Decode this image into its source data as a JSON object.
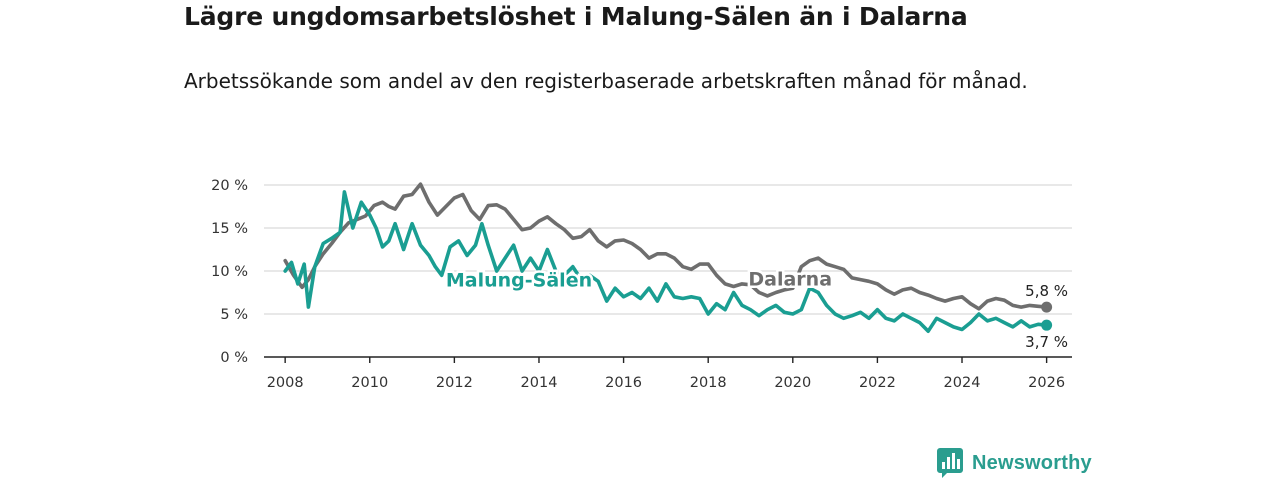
{
  "header": {
    "title": "Lägre ungdomsarbetslöshet i Malung-Sälen än i Dalarna",
    "subtitle": "Arbetssökande som andel av den registerbaserade arbetskraften månad för månad."
  },
  "brand": {
    "name": "Newsworthy"
  },
  "colors": {
    "malung": "#1a9e92",
    "dalarna": "#6e6e6e",
    "grid": "#d9d9d9",
    "axis": "#222222",
    "brand": "#2a9d8f"
  },
  "chart_data": {
    "type": "line",
    "title": "Lägre ungdomsarbetslöshet i Malung-Sälen än i Dalarna",
    "xlabel": "",
    "ylabel": "",
    "xlim": [
      2007.5,
      2026.6
    ],
    "ylim": [
      0,
      20
    ],
    "y_ticks": [
      0,
      5,
      10,
      15,
      20
    ],
    "y_tick_labels": [
      "0 %",
      "5 %",
      "10 %",
      "15 %",
      "20 %"
    ],
    "x_ticks": [
      2008,
      2010,
      2012,
      2014,
      2016,
      2018,
      2020,
      2022,
      2024,
      2026
    ],
    "x_tick_labels": [
      "2008",
      "2010",
      "2012",
      "2014",
      "2016",
      "2018",
      "2020",
      "2022",
      "2024",
      "2026"
    ],
    "grid": true,
    "series": [
      {
        "name": "Dalarna",
        "label": "Dalarna",
        "end_label": "5,8 %",
        "end_value": 5.8,
        "x": [
          2008.0,
          2008.2,
          2008.4,
          2008.55,
          2008.7,
          2008.9,
          2009.1,
          2009.3,
          2009.5,
          2009.7,
          2009.9,
          2010.1,
          2010.3,
          2010.45,
          2010.6,
          2010.8,
          2011.0,
          2011.2,
          2011.4,
          2011.6,
          2011.8,
          2012.0,
          2012.2,
          2012.4,
          2012.6,
          2012.8,
          2013.0,
          2013.2,
          2013.4,
          2013.6,
          2013.8,
          2014.0,
          2014.2,
          2014.4,
          2014.6,
          2014.8,
          2015.0,
          2015.2,
          2015.4,
          2015.6,
          2015.8,
          2016.0,
          2016.2,
          2016.4,
          2016.6,
          2016.8,
          2017.0,
          2017.2,
          2017.4,
          2017.6,
          2017.8,
          2018.0,
          2018.2,
          2018.4,
          2018.6,
          2018.8,
          2019.0,
          2019.2,
          2019.4,
          2019.6,
          2019.8,
          2020.0,
          2020.2,
          2020.4,
          2020.6,
          2020.8,
          2021.0,
          2021.2,
          2021.4,
          2021.6,
          2021.8,
          2022.0,
          2022.2,
          2022.4,
          2022.6,
          2022.8,
          2023.0,
          2023.2,
          2023.4,
          2023.6,
          2023.8,
          2024.0,
          2024.2,
          2024.4,
          2024.6,
          2024.8,
          2025.0,
          2025.2,
          2025.4,
          2025.6,
          2025.8,
          2026.0
        ],
        "values": [
          11.2,
          9.5,
          8.1,
          9.0,
          10.5,
          12.0,
          13.2,
          14.5,
          15.6,
          16.0,
          16.4,
          17.6,
          18.0,
          17.5,
          17.2,
          18.7,
          18.9,
          20.1,
          18.0,
          16.5,
          17.5,
          18.5,
          18.9,
          17.0,
          16.0,
          17.6,
          17.7,
          17.2,
          16.0,
          14.8,
          15.0,
          15.8,
          16.3,
          15.5,
          14.8,
          13.8,
          14.0,
          14.8,
          13.5,
          12.8,
          13.5,
          13.6,
          13.2,
          12.5,
          11.5,
          12.0,
          12.0,
          11.5,
          10.5,
          10.2,
          10.8,
          10.8,
          9.5,
          8.5,
          8.2,
          8.5,
          8.4,
          7.5,
          7.1,
          7.5,
          7.8,
          8.0,
          10.5,
          11.2,
          11.5,
          10.8,
          10.5,
          10.2,
          9.2,
          9.0,
          8.8,
          8.5,
          7.8,
          7.3,
          7.8,
          8.0,
          7.5,
          7.2,
          6.8,
          6.5,
          6.8,
          7.0,
          6.2,
          5.6,
          6.5,
          6.8,
          6.6,
          6.0,
          5.8,
          6.0,
          5.9,
          5.8
        ]
      },
      {
        "name": "Malung-Sälen",
        "label": "Malung-Sälen",
        "end_label": "3,7 %",
        "end_value": 3.7,
        "x": [
          2008.0,
          2008.15,
          2008.3,
          2008.45,
          2008.55,
          2008.7,
          2008.9,
          2009.1,
          2009.3,
          2009.4,
          2009.6,
          2009.8,
          2010.0,
          2010.15,
          2010.3,
          2010.45,
          2010.6,
          2010.8,
          2011.0,
          2011.2,
          2011.4,
          2011.55,
          2011.7,
          2011.9,
          2012.1,
          2012.3,
          2012.5,
          2012.65,
          2012.8,
          2013.0,
          2013.2,
          2013.4,
          2013.6,
          2013.8,
          2014.0,
          2014.2,
          2014.4,
          2014.6,
          2014.8,
          2015.0,
          2015.2,
          2015.4,
          2015.6,
          2015.8,
          2016.0,
          2016.2,
          2016.4,
          2016.6,
          2016.8,
          2017.0,
          2017.2,
          2017.4,
          2017.6,
          2017.8,
          2018.0,
          2018.2,
          2018.4,
          2018.6,
          2018.8,
          2019.0,
          2019.2,
          2019.4,
          2019.6,
          2019.8,
          2020.0,
          2020.2,
          2020.4,
          2020.6,
          2020.8,
          2021.0,
          2021.2,
          2021.4,
          2021.6,
          2021.8,
          2022.0,
          2022.2,
          2022.4,
          2022.6,
          2022.8,
          2023.0,
          2023.2,
          2023.4,
          2023.6,
          2023.8,
          2024.0,
          2024.2,
          2024.4,
          2024.6,
          2024.8,
          2025.0,
          2025.2,
          2025.4,
          2025.6,
          2025.8,
          2026.0
        ],
        "values": [
          10.0,
          11.0,
          8.5,
          10.8,
          5.8,
          10.5,
          13.2,
          13.8,
          14.5,
          19.2,
          15.0,
          18.0,
          16.5,
          15.0,
          12.8,
          13.5,
          15.5,
          12.5,
          15.5,
          13.0,
          11.8,
          10.5,
          9.5,
          12.8,
          13.5,
          11.8,
          13.0,
          15.5,
          13.0,
          10.0,
          11.5,
          13.0,
          10.0,
          11.5,
          10.0,
          12.5,
          10.0,
          9.5,
          10.5,
          9.0,
          9.5,
          8.8,
          6.5,
          8.0,
          7.0,
          7.5,
          6.8,
          8.0,
          6.5,
          8.5,
          7.0,
          6.8,
          7.0,
          6.8,
          5.0,
          6.2,
          5.5,
          7.5,
          6.0,
          5.5,
          4.8,
          5.5,
          6.0,
          5.2,
          5.0,
          5.5,
          8.0,
          7.5,
          6.0,
          5.0,
          4.5,
          4.8,
          5.2,
          4.5,
          5.5,
          4.5,
          4.2,
          5.0,
          4.5,
          4.0,
          3.0,
          4.5,
          4.0,
          3.5,
          3.2,
          4.0,
          5.0,
          4.2,
          4.5,
          4.0,
          3.5,
          4.2,
          3.5,
          3.8,
          3.7
        ]
      }
    ]
  }
}
